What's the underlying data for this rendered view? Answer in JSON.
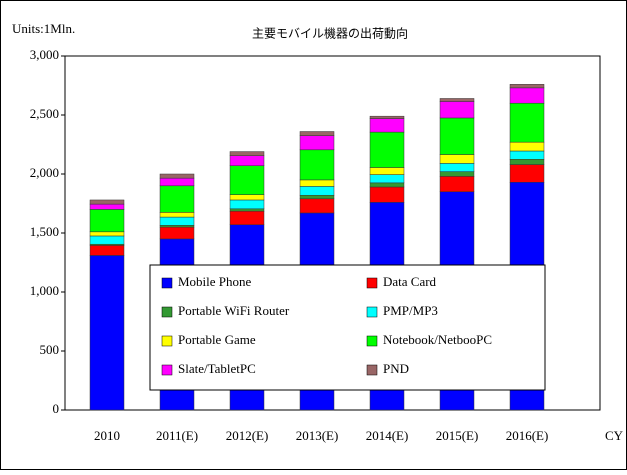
{
  "chart_data": {
    "type": "stacked_bar",
    "title": "主要モバイル機器の出荷動向",
    "unit_label": "Units:1Mln.",
    "xlabel": "CY",
    "categories": [
      "2010",
      "2011(E)",
      "2012(E)",
      "2013(E)",
      "2014(E)",
      "2015(E)",
      "2016(E)"
    ],
    "series": [
      {
        "name": "Mobile Phone",
        "color": "#0000ff",
        "values": [
          1310,
          1450,
          1570,
          1670,
          1760,
          1850,
          1930
        ]
      },
      {
        "name": "Data Card",
        "color": "#ff0000",
        "values": [
          85,
          100,
          115,
          120,
          130,
          130,
          150
        ]
      },
      {
        "name": "Portable WiFi Router",
        "color": "#339933",
        "values": [
          10,
          15,
          20,
          30,
          35,
          40,
          45
        ]
      },
      {
        "name": "PMP/MP3",
        "color": "#00ffff",
        "values": [
          70,
          70,
          75,
          75,
          70,
          70,
          70
        ]
      },
      {
        "name": "Portable Game",
        "color": "#ffff00",
        "values": [
          35,
          40,
          45,
          55,
          60,
          75,
          75
        ]
      },
      {
        "name": "Notebook/NetbooPC",
        "color": "#00ff00",
        "values": [
          190,
          225,
          245,
          255,
          300,
          310,
          330
        ]
      },
      {
        "name": "Slate/TabletPC",
        "color": "#ff00ff",
        "values": [
          45,
          65,
          85,
          120,
          115,
          140,
          130
        ]
      },
      {
        "name": "PND",
        "color": "#996666",
        "values": [
          35,
          35,
          35,
          35,
          20,
          25,
          30
        ]
      }
    ],
    "ylim": [
      0,
      3000
    ],
    "yticks": [
      0,
      {
        "value": 500,
        "label": "500"
      },
      {
        "value": 1000,
        "label": "1,000"
      },
      {
        "value": 1500,
        "label": "1,500"
      },
      {
        "value": 2000,
        "label": "2,000"
      },
      {
        "value": 2500,
        "label": "2,500"
      },
      {
        "value": 3000,
        "label": "3,000"
      }
    ],
    "legend": "center"
  }
}
